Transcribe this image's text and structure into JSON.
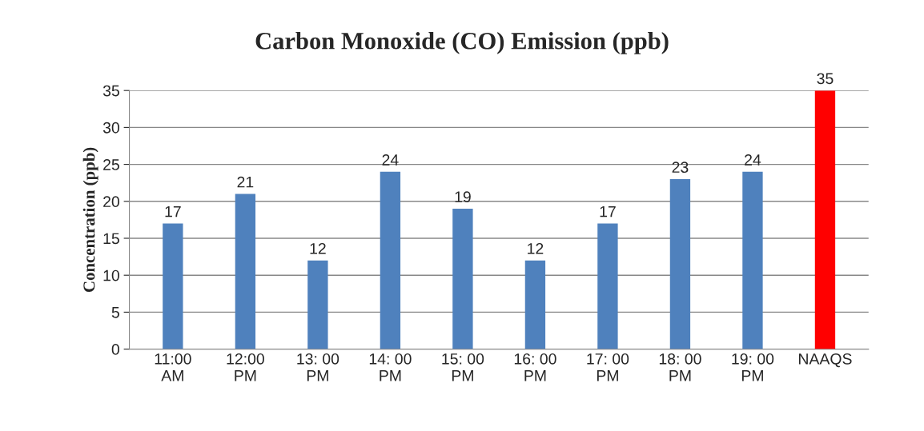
{
  "chart_data": {
    "type": "bar",
    "title": "Carbon Monoxide (CO) Emission (ppb)",
    "ylabel": "Concentration (ppb)",
    "categories": [
      "11:00\nAM",
      "12:00\nPM",
      "13: 00\nPM",
      "14: 00\nPM",
      "15: 00\nPM",
      "16: 00\nPM",
      "17: 00\nPM",
      "18: 00\nPM",
      "19: 00\nPM",
      "NAAQS"
    ],
    "values": [
      17,
      21,
      12,
      24,
      19,
      12,
      17,
      23,
      24,
      35
    ],
    "colors": [
      "#4f81bd",
      "#4f81bd",
      "#4f81bd",
      "#4f81bd",
      "#4f81bd",
      "#4f81bd",
      "#4f81bd",
      "#4f81bd",
      "#4f81bd",
      "#ff0000"
    ],
    "ylim": [
      0,
      35
    ],
    "yticks": [
      0,
      5,
      10,
      15,
      20,
      25,
      30,
      35
    ],
    "grid": "y",
    "data_labels": true
  }
}
